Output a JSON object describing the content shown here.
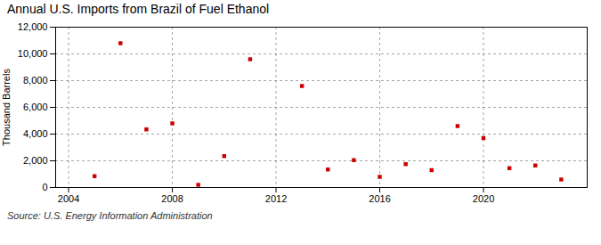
{
  "chart_data": {
    "type": "scatter",
    "title": "Annual U.S. Imports from Brazil of Fuel Ethanol",
    "y_label": "Thousand Barrels",
    "annotations": [
      "Source: U.S. Energy Information Administration"
    ],
    "x": [
      2005,
      2006,
      2007,
      2008,
      2009,
      2010,
      2011,
      2013,
      2014,
      2015,
      2016,
      2017,
      2018,
      2019,
      2020,
      2021,
      2022,
      2023
    ],
    "values": [
      850,
      10800,
      4350,
      4800,
      200,
      2350,
      9600,
      7600,
      1350,
      2050,
      800,
      1750,
      1300,
      4600,
      3700,
      1450,
      1650,
      600
    ],
    "color": "#cc0000",
    "marker": "square",
    "xlim": [
      2003.5,
      2024.0
    ],
    "xticks": [
      2004,
      2008,
      2012,
      2016,
      2020
    ],
    "ylim": [
      0,
      12000
    ],
    "yticks": [
      0,
      {
        "value": 2000,
        "label": "2,000"
      },
      {
        "value": 4000,
        "label": "4,000"
      },
      {
        "value": 6000,
        "label": "6,000"
      },
      {
        "value": 8000,
        "label": "8,000"
      },
      {
        "value": 10000,
        "label": "10,000"
      },
      {
        "value": 12000,
        "label": "12,000"
      }
    ],
    "grid": true
  }
}
